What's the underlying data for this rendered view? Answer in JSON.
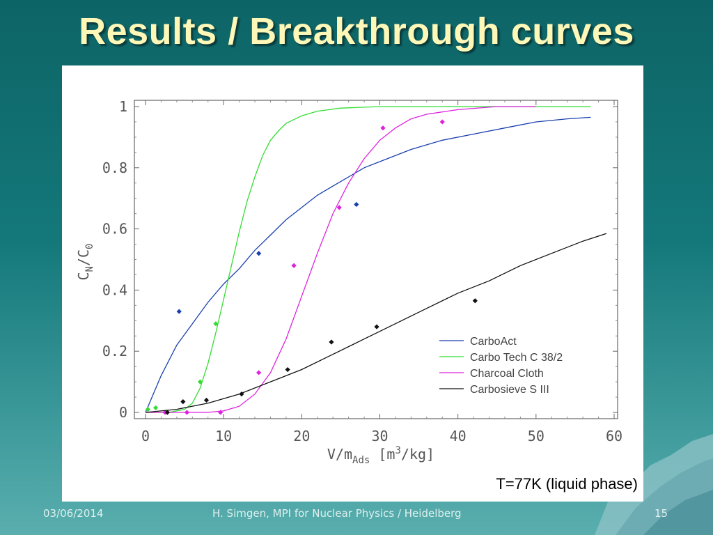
{
  "slide": {
    "title": "Results / Breakthrough curves",
    "note": "T=77K (liquid phase)",
    "footer_date": "03/06/2014",
    "footer_center": "H. Simgen, MPI for Nuclear Physics / Heidelberg",
    "page_number": "15"
  },
  "colors": {
    "title": "#fdf7b8",
    "background": "#14787a"
  },
  "chart_data": {
    "type": "line",
    "title": "",
    "xlabel": "V/m",
    "xlabel_sub": "Ads",
    "xlabel_unit_pre": " [m",
    "xlabel_unit_sup": "3",
    "xlabel_unit_post": "/kg]",
    "ylabel": "C",
    "ylabel_sub1": "N",
    "ylabel_mid": "/C",
    "ylabel_sub2": "0",
    "xlim": [
      0,
      60
    ],
    "ylim": [
      0,
      1
    ],
    "xticks": [
      0,
      10,
      20,
      30,
      40,
      50,
      60
    ],
    "yticks": [
      0,
      0.2,
      0.4,
      0.6,
      0.8,
      1
    ],
    "ytick_labels": [
      "0",
      "0.2",
      "0.4",
      "0.6",
      "0.8",
      "1"
    ],
    "legend_position": "bottom-right",
    "series": [
      {
        "name": "CarboAct",
        "color": "#1a3fae",
        "line": [
          [
            0,
            0
          ],
          [
            2,
            0.12
          ],
          [
            4,
            0.22
          ],
          [
            6,
            0.29
          ],
          [
            8,
            0.36
          ],
          [
            10,
            0.42
          ],
          [
            12,
            0.47
          ],
          [
            14,
            0.53
          ],
          [
            16,
            0.58
          ],
          [
            18,
            0.63
          ],
          [
            20,
            0.67
          ],
          [
            22,
            0.71
          ],
          [
            24,
            0.74
          ],
          [
            26,
            0.77
          ],
          [
            28,
            0.8
          ],
          [
            30,
            0.82
          ],
          [
            34,
            0.86
          ],
          [
            38,
            0.89
          ],
          [
            42,
            0.91
          ],
          [
            46,
            0.93
          ],
          [
            50,
            0.95
          ],
          [
            54,
            0.96
          ],
          [
            57,
            0.965
          ]
        ],
        "points": [
          [
            4.3,
            0.33
          ],
          [
            14.5,
            0.52
          ],
          [
            27,
            0.68
          ]
        ]
      },
      {
        "name": "Carbo Tech C 38/2",
        "color": "#33dd33",
        "line": [
          [
            0,
            0
          ],
          [
            3,
            0
          ],
          [
            5,
            0.01
          ],
          [
            6,
            0.03
          ],
          [
            7,
            0.08
          ],
          [
            8,
            0.16
          ],
          [
            9,
            0.26
          ],
          [
            10,
            0.37
          ],
          [
            11,
            0.48
          ],
          [
            12,
            0.59
          ],
          [
            13,
            0.69
          ],
          [
            14,
            0.77
          ],
          [
            15,
            0.84
          ],
          [
            16,
            0.89
          ],
          [
            17,
            0.92
          ],
          [
            18,
            0.945
          ],
          [
            20,
            0.97
          ],
          [
            22,
            0.985
          ],
          [
            25,
            0.995
          ],
          [
            30,
            1
          ],
          [
            40,
            1
          ],
          [
            57,
            1
          ]
        ],
        "points": [
          [
            0.3,
            0.01
          ],
          [
            1.3,
            0.015
          ],
          [
            7,
            0.1
          ],
          [
            9,
            0.29
          ]
        ]
      },
      {
        "name": "Charcoal Cloth",
        "color": "#dd22dd",
        "line": [
          [
            0,
            0
          ],
          [
            8,
            0
          ],
          [
            10,
            0.005
          ],
          [
            12,
            0.02
          ],
          [
            14,
            0.06
          ],
          [
            16,
            0.13
          ],
          [
            18,
            0.24
          ],
          [
            20,
            0.38
          ],
          [
            22,
            0.52
          ],
          [
            24,
            0.65
          ],
          [
            26,
            0.75
          ],
          [
            28,
            0.83
          ],
          [
            30,
            0.89
          ],
          [
            32,
            0.93
          ],
          [
            34,
            0.96
          ],
          [
            36,
            0.975
          ],
          [
            40,
            0.99
          ],
          [
            45,
            1
          ],
          [
            50,
            1
          ]
        ],
        "points": [
          [
            2.5,
            0
          ],
          [
            5.3,
            0
          ],
          [
            9.6,
            0
          ],
          [
            14.5,
            0.13
          ],
          [
            19,
            0.48
          ],
          [
            24.8,
            0.67
          ],
          [
            30.4,
            0.93
          ],
          [
            38,
            0.95
          ]
        ]
      },
      {
        "name": "Carbosieve S III",
        "color": "#111111",
        "line": [
          [
            0,
            0
          ],
          [
            4,
            0.01
          ],
          [
            8,
            0.03
          ],
          [
            12,
            0.06
          ],
          [
            16,
            0.1
          ],
          [
            20,
            0.14
          ],
          [
            24,
            0.19
          ],
          [
            28,
            0.24
          ],
          [
            32,
            0.29
          ],
          [
            36,
            0.34
          ],
          [
            40,
            0.39
          ],
          [
            44,
            0.43
          ],
          [
            48,
            0.48
          ],
          [
            52,
            0.52
          ],
          [
            56,
            0.56
          ],
          [
            59,
            0.585
          ]
        ],
        "points": [
          [
            2.8,
            0
          ],
          [
            4.8,
            0.035
          ],
          [
            7.8,
            0.04
          ],
          [
            12.3,
            0.06
          ],
          [
            18.2,
            0.14
          ],
          [
            23.8,
            0.23
          ],
          [
            29.6,
            0.28
          ],
          [
            42.2,
            0.365
          ]
        ]
      }
    ]
  }
}
